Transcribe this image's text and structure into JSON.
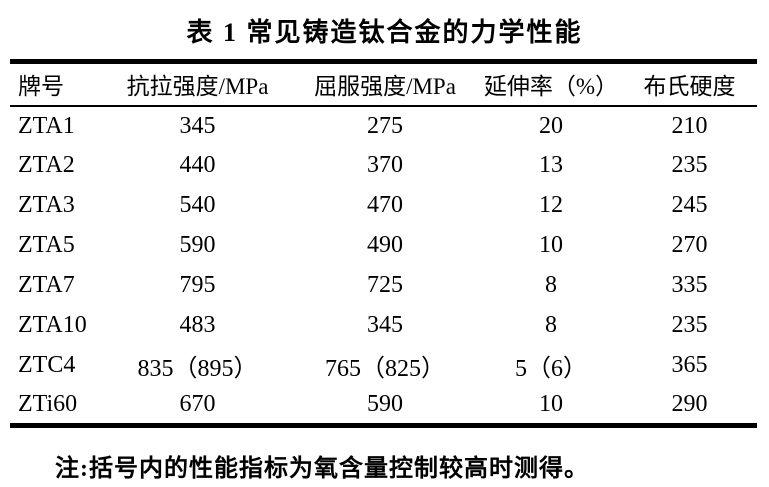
{
  "title": "表 1 常见铸造钛合金的力学性能",
  "table": {
    "headers": [
      "牌号",
      "抗拉强度/MPa",
      "屈服强度/MPa",
      "延伸率（%）",
      "布氏硬度"
    ],
    "rows": [
      [
        "ZTA1",
        "345",
        "275",
        "20",
        "210"
      ],
      [
        "ZTA2",
        "440",
        "370",
        "13",
        "235"
      ],
      [
        "ZTA3",
        "540",
        "470",
        "12",
        "245"
      ],
      [
        "ZTA5",
        "590",
        "490",
        "10",
        "270"
      ],
      [
        "ZTA7",
        "795",
        "725",
        "8",
        "335"
      ],
      [
        "ZTA10",
        "483",
        "345",
        "8",
        "235"
      ],
      [
        "ZTC4",
        "835（895）",
        "765（825）",
        "5（6）",
        "365"
      ],
      [
        "ZTi60",
        "670",
        "590",
        "10",
        "290"
      ]
    ]
  },
  "note": "注:括号内的性能指标为氧含量控制较高时测得。",
  "colors": {
    "background": "#ffffff",
    "text": "#000000",
    "rule": "#000000"
  }
}
